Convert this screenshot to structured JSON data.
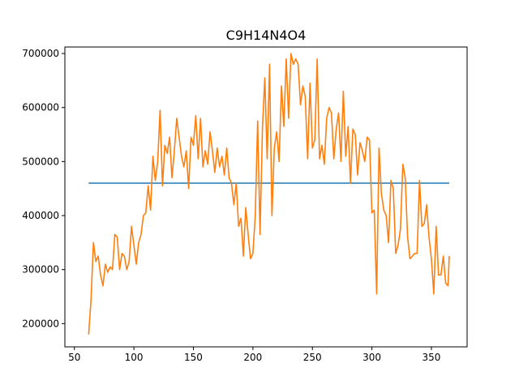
{
  "chart_data": {
    "type": "line",
    "title": "C9H14N4O4",
    "xlabel": "",
    "ylabel": "",
    "xlim": [
      42,
      380
    ],
    "ylim": [
      157000,
      712000
    ],
    "grid": false,
    "x_ticks": [
      50,
      100,
      150,
      200,
      250,
      300,
      350
    ],
    "x_tick_labels": [
      "50",
      "100",
      "150",
      "200",
      "250",
      "300",
      "350"
    ],
    "y_ticks": [
      200000,
      300000,
      400000,
      500000,
      600000,
      700000
    ],
    "y_tick_labels": [
      "200000",
      "300000",
      "400000",
      "500000",
      "600000",
      "700000"
    ],
    "series": [
      {
        "color": "#1f77b4",
        "x": [
          62,
          365
        ],
        "y": [
          460000,
          460000
        ]
      },
      {
        "color": "#ff7f0e",
        "x": [
          62,
          64,
          66,
          68,
          70,
          72,
          74,
          76,
          78,
          80,
          82,
          84,
          86,
          88,
          90,
          92,
          94,
          96,
          98,
          100,
          102,
          104,
          106,
          108,
          110,
          112,
          114,
          116,
          118,
          120,
          122,
          124,
          126,
          128,
          130,
          132,
          134,
          136,
          138,
          140,
          142,
          144,
          146,
          148,
          150,
          152,
          154,
          156,
          158,
          160,
          162,
          164,
          166,
          168,
          170,
          172,
          174,
          176,
          178,
          180,
          182,
          184,
          186,
          188,
          190,
          192,
          194,
          196,
          198,
          200,
          202,
          204,
          206,
          208,
          210,
          212,
          214,
          216,
          218,
          220,
          222,
          224,
          226,
          228,
          230,
          232,
          234,
          236,
          238,
          240,
          242,
          244,
          246,
          248,
          250,
          252,
          254,
          256,
          258,
          260,
          262,
          264,
          266,
          268,
          270,
          272,
          274,
          276,
          278,
          280,
          282,
          284,
          286,
          288,
          290,
          292,
          294,
          296,
          298,
          300,
          302,
          304,
          306,
          308,
          310,
          312,
          314,
          316,
          318,
          320,
          322,
          324,
          326,
          328,
          330,
          332,
          334,
          336,
          338,
          340,
          342,
          344,
          346,
          348,
          350,
          352,
          354,
          356,
          358,
          360,
          362,
          364,
          365
        ],
        "y": [
          180000,
          245000,
          350000,
          315000,
          325000,
          290000,
          270000,
          310000,
          295000,
          305000,
          300000,
          365000,
          360000,
          300000,
          330000,
          325000,
          300000,
          315000,
          380000,
          345000,
          310000,
          350000,
          365000,
          400000,
          405000,
          455000,
          410000,
          510000,
          465000,
          500000,
          595000,
          455000,
          530000,
          515000,
          545000,
          470000,
          520000,
          580000,
          545000,
          510000,
          490000,
          520000,
          450000,
          545000,
          530000,
          585000,
          505000,
          580000,
          490000,
          520000,
          495000,
          555000,
          520000,
          480000,
          525000,
          490000,
          510000,
          475000,
          525000,
          470000,
          460000,
          420000,
          460000,
          380000,
          395000,
          325000,
          415000,
          365000,
          320000,
          330000,
          400000,
          575000,
          365000,
          560000,
          655000,
          505000,
          680000,
          400000,
          525000,
          555000,
          500000,
          640000,
          565000,
          690000,
          580000,
          700000,
          680000,
          690000,
          680000,
          605000,
          640000,
          620000,
          505000,
          645000,
          525000,
          540000,
          690000,
          505000,
          530000,
          495000,
          580000,
          600000,
          590000,
          505000,
          560000,
          590000,
          500000,
          630000,
          510000,
          565000,
          460000,
          560000,
          550000,
          475000,
          535000,
          520000,
          500000,
          545000,
          540000,
          405000,
          410000,
          255000,
          525000,
          440000,
          410000,
          400000,
          350000,
          465000,
          450000,
          330000,
          345000,
          375000,
          495000,
          470000,
          360000,
          320000,
          325000,
          330000,
          330000,
          465000,
          380000,
          385000,
          420000,
          360000,
          320000,
          255000,
          380000,
          290000,
          290000,
          325000,
          275000,
          270000,
          325000
        ]
      }
    ]
  }
}
